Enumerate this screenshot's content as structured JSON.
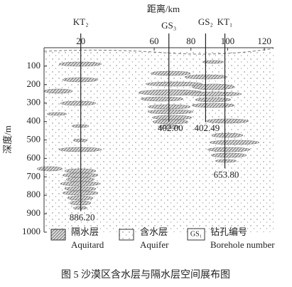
{
  "chart_data": {
    "type": "section",
    "x_label": "距离/km",
    "y_label": "深度/m",
    "xlim": [
      0,
      125
    ],
    "xticks": [
      20,
      60,
      80,
      100,
      120
    ],
    "ylim": [
      0,
      1000
    ],
    "yticks": [
      100,
      200,
      300,
      400,
      500,
      600,
      700,
      800,
      900,
      1000
    ],
    "boreholes": [
      {
        "name": "KT₂",
        "x": 20,
        "depth": 886.2,
        "depth_label": "886.20"
      },
      {
        "name": "GS₃",
        "x": 68,
        "depth": 402,
        "depth_label": "402.00"
      },
      {
        "name": "GS₂",
        "x": 88,
        "depth": 402.49,
        "depth_label": "402.49"
      },
      {
        "name": "KT₁",
        "x": 98.5,
        "depth": 653.8,
        "depth_label": "653.80"
      }
    ],
    "legend": [
      {
        "label": "隔水层",
        "label_en": "Aquitard"
      },
      {
        "label": "含水层",
        "label_en": "Aquifer"
      },
      {
        "symbol": "GS₁",
        "label": "钻孔编号",
        "label_en": "Borehole number"
      }
    ],
    "caption": "图 5  沙漠区含水层与隔水层空间展布图"
  }
}
